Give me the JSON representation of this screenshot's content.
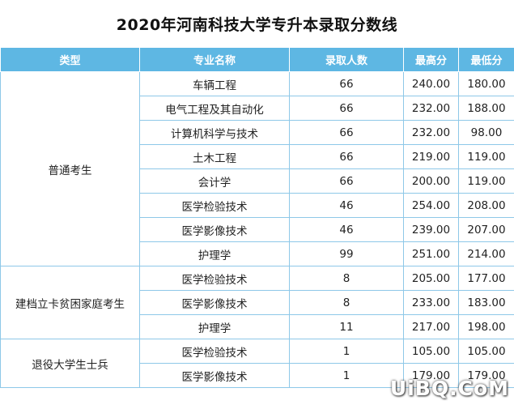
{
  "title": "2020年河南科技大学专升本录取分数线",
  "header": [
    "类型",
    "专业名称",
    "录取人数",
    "最高分",
    "最低分"
  ],
  "groups": [
    {
      "category": "普通考生",
      "rows": [
        {
          "major": "车辆工程",
          "count": "66",
          "max": "240.00",
          "min": "180.00"
        },
        {
          "major": "电气工程及其自动化",
          "count": "66",
          "max": "232.00",
          "min": "188.00"
        },
        {
          "major": "计算机科学与技术",
          "count": "66",
          "max": "232.00",
          "min": "98.00"
        },
        {
          "major": "土木工程",
          "count": "66",
          "max": "219.00",
          "min": "119.00"
        },
        {
          "major": "会计学",
          "count": "66",
          "max": "200.00",
          "min": "119.00"
        },
        {
          "major": "医学检验技术",
          "count": "46",
          "max": "254.00",
          "min": "208.00"
        },
        {
          "major": "医学影像技术",
          "count": "46",
          "max": "239.00",
          "min": "207.00"
        },
        {
          "major": "护理学",
          "count": "99",
          "max": "251.00",
          "min": "214.00"
        }
      ]
    },
    {
      "category": "建档立卡贫困家庭考生",
      "rows": [
        {
          "major": "医学检验技术",
          "count": "8",
          "max": "205.00",
          "min": "177.00"
        },
        {
          "major": "医学影像技术",
          "count": "8",
          "max": "233.00",
          "min": "183.00"
        },
        {
          "major": "护理学",
          "count": "11",
          "max": "217.00",
          "min": "198.00"
        }
      ]
    },
    {
      "category": "退役大学生士兵",
      "rows": [
        {
          "major": "医学检验技术",
          "count": "1",
          "max": "105.00",
          "min": "105.00"
        },
        {
          "major": "医学影像技术",
          "count": "1",
          "max": "179.00",
          "min": "179.00"
        }
      ]
    }
  ],
  "watermark": "UiBQ.CoM"
}
